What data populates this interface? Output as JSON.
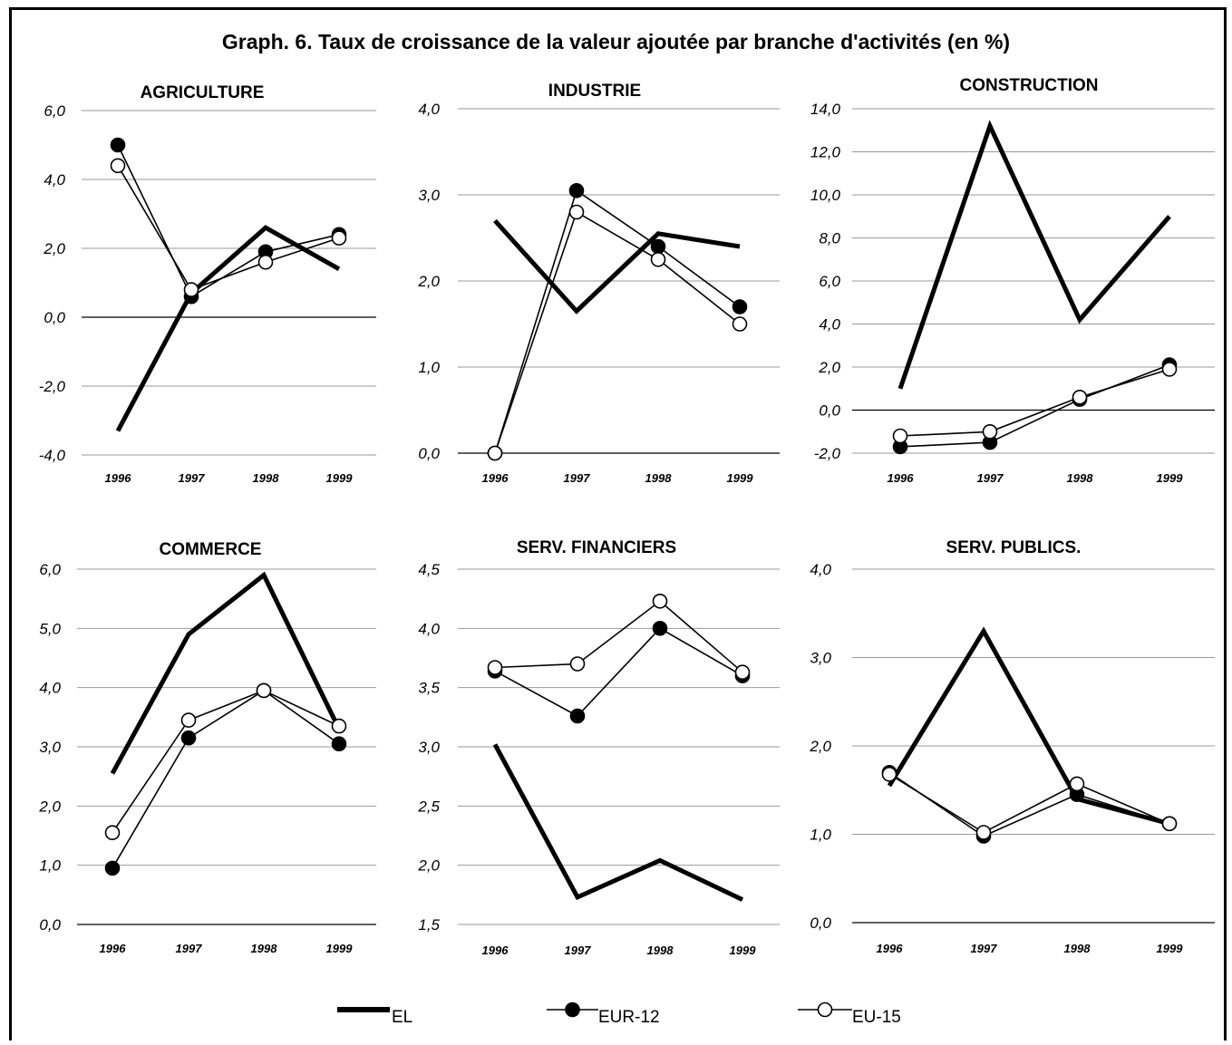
{
  "title": "Graph. 6. Taux de croissance de la valeur ajoutée par branche d'activités  (en %)",
  "legend": [
    {
      "name": "EL",
      "style": "thick-line",
      "color": "#000000"
    },
    {
      "name": "EUR-12",
      "style": "filled-marker",
      "color": "#000000"
    },
    {
      "name": "EU-15",
      "style": "open-marker",
      "color": "#000000"
    }
  ],
  "chart_data": [
    {
      "type": "line",
      "title": "AGRICULTURE",
      "categories": [
        "1996",
        "1997",
        "1998",
        "1999"
      ],
      "yticks": [
        "6,0",
        "4,0",
        "2,0",
        "0,0",
        "-2,0",
        "-4,0"
      ],
      "ylim": [
        -4,
        6
      ],
      "series": [
        {
          "name": "EL",
          "values": [
            -3.3,
            0.7,
            2.6,
            1.4
          ]
        },
        {
          "name": "EUR-12",
          "values": [
            5.0,
            0.6,
            1.9,
            2.4
          ]
        },
        {
          "name": "EU-15",
          "values": [
            4.4,
            0.8,
            1.6,
            2.3
          ]
        }
      ]
    },
    {
      "type": "line",
      "title": "INDUSTRIE",
      "categories": [
        "1996",
        "1997",
        "1998",
        "1999"
      ],
      "yticks": [
        "4,0",
        "3,0",
        "2,0",
        "1,0",
        "0,0"
      ],
      "ylim": [
        0,
        4
      ],
      "series": [
        {
          "name": "EL",
          "values": [
            2.7,
            1.65,
            2.55,
            2.4
          ]
        },
        {
          "name": "EUR-12",
          "values": [
            0.0,
            3.05,
            2.4,
            1.7
          ]
        },
        {
          "name": "EU-15",
          "values": [
            0.0,
            2.8,
            2.25,
            1.5
          ]
        }
      ]
    },
    {
      "type": "line",
      "title": "CONSTRUCTION",
      "categories": [
        "1996",
        "1997",
        "1998",
        "1999"
      ],
      "yticks": [
        "14,0",
        "12,0",
        "10,0",
        "8,0",
        "6,0",
        "4,0",
        "2,0",
        "0,0",
        "-2,0"
      ],
      "ylim": [
        -2,
        14
      ],
      "series": [
        {
          "name": "EL",
          "values": [
            1.0,
            13.2,
            4.2,
            9.0
          ]
        },
        {
          "name": "EUR-12",
          "values": [
            -1.7,
            -1.5,
            0.5,
            2.1
          ]
        },
        {
          "name": "EU-15",
          "values": [
            -1.2,
            -1.0,
            0.6,
            1.9
          ]
        }
      ]
    },
    {
      "type": "line",
      "title": "COMMERCE",
      "categories": [
        "1996",
        "1997",
        "1998",
        "1999"
      ],
      "yticks": [
        "6,0",
        "5,0",
        "4,0",
        "3,0",
        "2,0",
        "1,0",
        "0,0"
      ],
      "ylim": [
        0,
        6
      ],
      "series": [
        {
          "name": "EL",
          "values": [
            2.55,
            4.9,
            5.9,
            3.3
          ]
        },
        {
          "name": "EUR-12",
          "values": [
            0.95,
            3.15,
            3.95,
            3.05
          ]
        },
        {
          "name": "EU-15",
          "values": [
            1.55,
            3.45,
            3.95,
            3.35
          ]
        }
      ]
    },
    {
      "type": "line",
      "title": "SERV. FINANCIERS",
      "categories": [
        "1996",
        "1997",
        "1998",
        "1999"
      ],
      "yticks": [
        "4,5",
        "4,0",
        "3,5",
        "3,0",
        "2,5",
        "2,0",
        "1,5"
      ],
      "ylim": [
        1.5,
        4.5
      ],
      "series": [
        {
          "name": "EL",
          "values": [
            3.02,
            1.73,
            2.04,
            1.71
          ]
        },
        {
          "name": "EUR-12",
          "values": [
            3.64,
            3.26,
            4.0,
            3.6
          ]
        },
        {
          "name": "EU-15",
          "values": [
            3.67,
            3.7,
            4.23,
            3.63
          ]
        }
      ]
    },
    {
      "type": "line",
      "title": "SERV. PUBLICS.",
      "categories": [
        "1996",
        "1997",
        "1998",
        "1999"
      ],
      "yticks": [
        "4,0",
        "3,0",
        "2,0",
        "1,0",
        "0,0"
      ],
      "ylim": [
        0,
        4
      ],
      "series": [
        {
          "name": "EL",
          "values": [
            1.55,
            3.3,
            1.4,
            1.12
          ]
        },
        {
          "name": "EUR-12",
          "values": [
            1.7,
            0.98,
            1.45,
            1.12
          ]
        },
        {
          "name": "EU-15",
          "values": [
            1.68,
            1.02,
            1.57,
            1.12
          ]
        }
      ]
    }
  ]
}
